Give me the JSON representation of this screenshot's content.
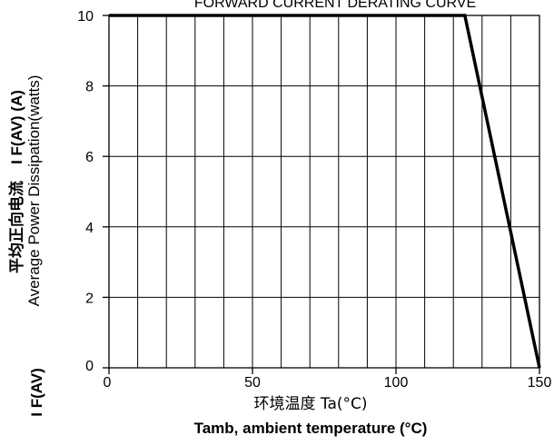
{
  "chart_data": {
    "type": "line",
    "title": "FORWARD CURRENT DERATING CURVE",
    "xlabel_cn": "环境温度 Ta(°C)",
    "xlabel_en": "Tamb, ambient temperature (°C)",
    "ylabel_en": "Average Power Dissipation(watts)",
    "ylabel_cn": "平均正向电流",
    "ylabel_cn_symbol": "I F(AV) (A)",
    "ylabel_prefix": "I F(AV)",
    "xlim": [
      0,
      150
    ],
    "ylim": [
      0,
      10
    ],
    "x_major_ticks": [
      0,
      50,
      100,
      150
    ],
    "x_tick_labels": [
      "0",
      "50",
      "100",
      "150"
    ],
    "y_ticks": [
      0,
      2,
      4,
      6,
      8,
      10
    ],
    "y_tick_labels": [
      "0",
      "2",
      "4",
      "6",
      "8",
      "10"
    ],
    "x_grid_step": 10,
    "y_grid_step": 2,
    "grid": true,
    "series": [
      {
        "x": [
          0,
          124,
          150
        ],
        "y": [
          10,
          10,
          0
        ]
      }
    ]
  }
}
